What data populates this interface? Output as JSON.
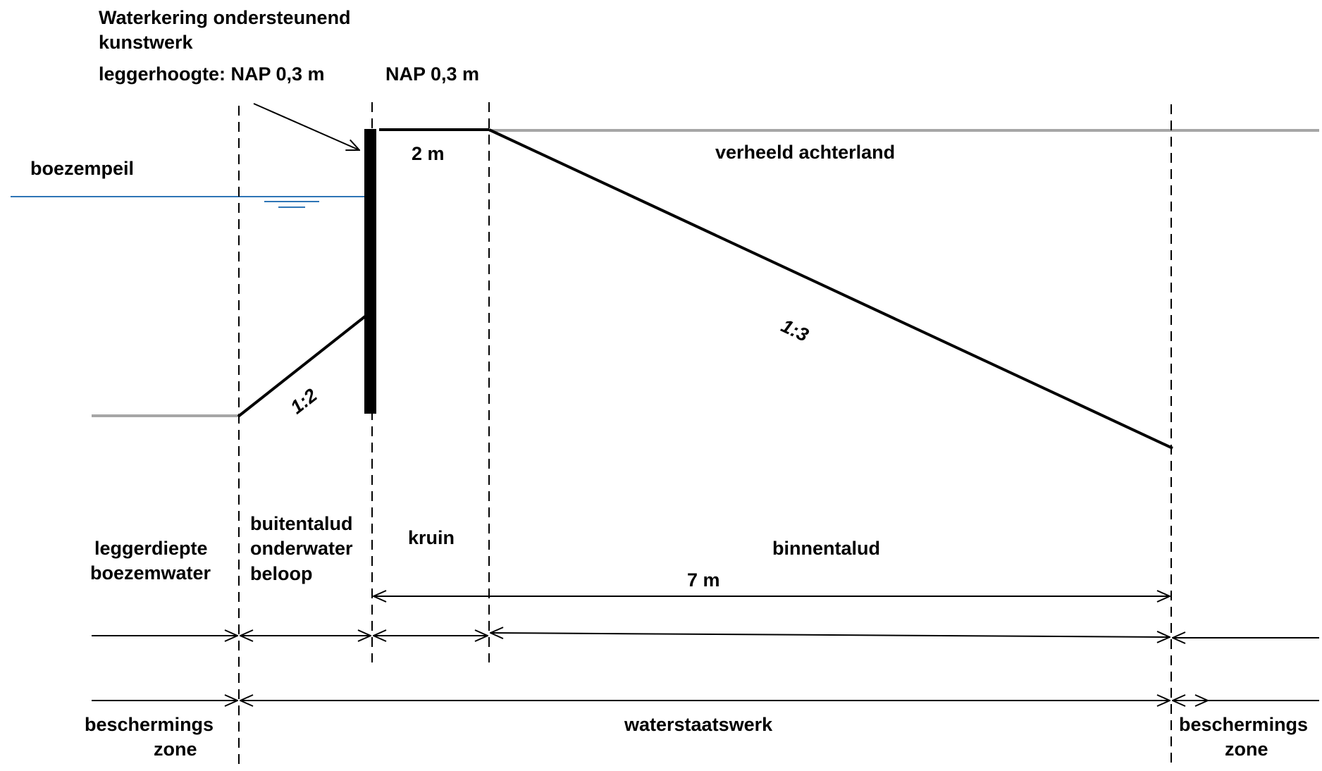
{
  "labels": {
    "structure_title_1": "Waterkering ondersteunend",
    "structure_title_2": "kunstwerk",
    "legger_height": "leggerhoogte: NAP 0,3 m",
    "nap_right": "NAP 0,3 m",
    "water_level": "boezempeil",
    "crest_width": "2 m",
    "hinterland": "verheeld achterland",
    "slope_inner": "1:3",
    "slope_outer": "1:2",
    "zone_depth_1": "leggerdiepte",
    "zone_depth_2": "boezemwater",
    "zone_outer_1": "buitentalud",
    "zone_outer_2": "onderwater",
    "zone_outer_3": "beloop",
    "zone_crest": "kruin",
    "zone_inner": "binnentalud",
    "inner_width": "7 m",
    "prot_left_1": "beschermings",
    "prot_left_2": "zone",
    "waterworks": "waterstaatswerk",
    "prot_right_1": "beschermings",
    "prot_right_2": "zone"
  },
  "colors": {
    "line": "#000000",
    "ground": "#a6a6a6",
    "water": "#2e75b6"
  }
}
